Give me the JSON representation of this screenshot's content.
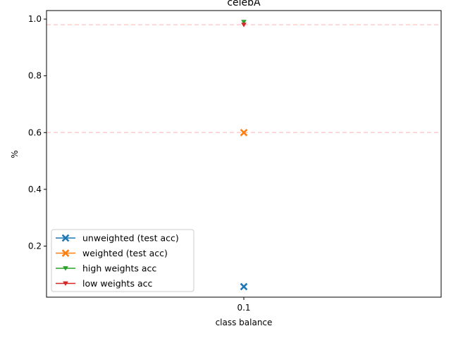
{
  "chart_data": {
    "type": "scatter",
    "title": "celebA",
    "xlabel": "class balance",
    "ylabel": "%",
    "categories": [
      "0.1"
    ],
    "ylim": [
      0.02,
      1.03
    ],
    "yticks": [
      "0.2",
      "0.4",
      "0.6",
      "0.8",
      "1.0"
    ],
    "ytick_values": [
      0.2,
      0.4,
      0.6,
      0.8,
      1.0
    ],
    "reference_lines": [
      0.98,
      0.6
    ],
    "reference_line_color": "#ffcccc",
    "grid": false,
    "legend_position": "lower-left",
    "series": [
      {
        "name": "unweighted (test acc)",
        "values": [
          0.057
        ],
        "color": "#1f77b4",
        "marker": "x"
      },
      {
        "name": "weighted (test acc)",
        "values": [
          0.6
        ],
        "color": "#ff7f0e",
        "marker": "x"
      },
      {
        "name": "high weights acc",
        "values": [
          0.99
        ],
        "color": "#2ca02c",
        "marker": "triangle-down"
      },
      {
        "name": "low weights acc",
        "values": [
          0.98
        ],
        "color": "#d62728",
        "marker": "triangle-down"
      }
    ]
  }
}
